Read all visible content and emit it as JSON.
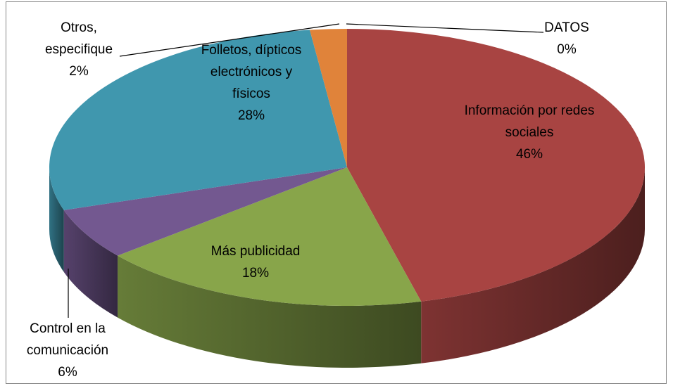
{
  "chart_data": {
    "type": "pie3d",
    "categories": [
      "DATOS",
      "Información por redes sociales",
      "Más publicidad",
      "Control en la comunicación",
      "Folletos, dípticos electrónicos y físicos",
      "Otros, especifique"
    ],
    "values": [
      0,
      46,
      18,
      6,
      28,
      2
    ],
    "value_labels": [
      "0%",
      "46%",
      "18%",
      "6%",
      "28%",
      "2%"
    ],
    "colors": [
      "#4f81bd",
      "#a84442",
      "#88a54a",
      "#735890",
      "#4097ae",
      "#e0833a"
    ]
  }
}
